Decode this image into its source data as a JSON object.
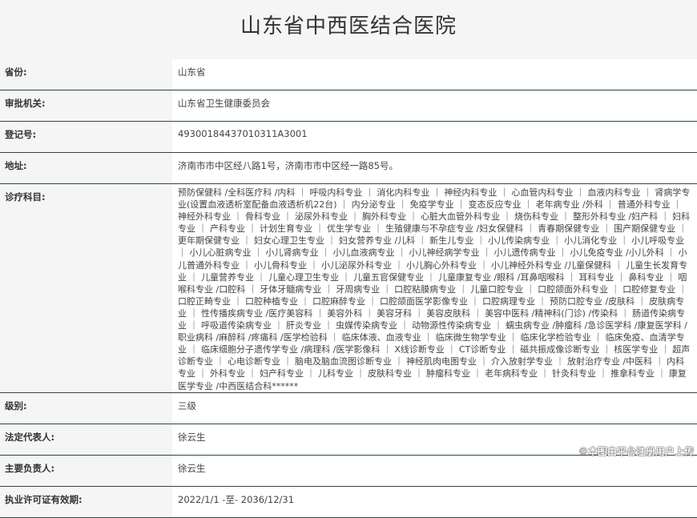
{
  "title": "山东省中西医结合医院",
  "rows": [
    {
      "label": "省份:",
      "value": "山东省"
    },
    {
      "label": "审批机关:",
      "value": "山东省卫生健康委员会"
    },
    {
      "label": "登记号:",
      "value": "49300184437010311A3001"
    },
    {
      "label": "地址:",
      "value": "济南市市中区经八路1号，济南市市中区经一路85号。"
    },
    {
      "label": "诊疗科目:",
      "value": "预防保健科 /全科医疗科 /内科 ｜ 呼吸内科专业 ｜ 消化内科专业 ｜ 神经内科专业 ｜ 心血管内科专业 ｜ 血液内科专业 ｜ 肾病学专业(设置血液透析室配备血液透析机22台) ｜ 内分泌专业 ｜ 免疫学专业 ｜ 变态反应专业 ｜ 老年病专业 /外科 ｜ 普通外科专业 ｜ 神经外科专业 ｜ 骨科专业 ｜ 泌尿外科专业 ｜ 胸外科专业 ｜ 心脏大血管外科专业 ｜ 烧伤科专业 ｜ 整形外科专业 /妇产科 ｜ 妇科专业 ｜ 产科专业 ｜ 计划生育专业 ｜ 优生学专业 ｜ 生殖健康与不孕症专业 /妇女保健科 ｜ 青春期保健专业 ｜ 围产期保健专业 ｜ 更年期保健专业 ｜ 妇女心理卫生专业 ｜ 妇女营养专业 /儿科 ｜ 新生儿专业 ｜ 小儿传染病专业 ｜ 小儿消化专业 ｜ 小儿呼吸专业 ｜ 小儿心脏病专业 ｜ 小儿肾病专业 ｜ 小儿血液病专业 ｜ 小儿神经病学专业 ｜ 小儿遗传病专业 ｜ 小儿免疫专业 /小儿外科 ｜ 小儿普通外科专业 ｜ 小儿骨科专业 ｜ 小儿泌尿外科专业 ｜ 小儿胸心外科专业 ｜ 小儿神经外科专业 /儿童保健科 ｜ 儿童生长发育专业 ｜ 儿童营养专业 ｜ 儿童心理卫生专业 ｜ 儿童五官保健专业 ｜ 儿童康复专业 /眼科 /耳鼻咽喉科 ｜ 耳科专业 ｜ 鼻科专业 ｜ 咽喉科专业 /口腔科 ｜ 牙体牙髓病专业 ｜ 牙周病专业 ｜ 口腔粘膜病专业 ｜ 儿童口腔专业 ｜ 口腔颌面外科专业 ｜ 口腔修复专业 ｜ 口腔正畸专业 ｜ 口腔种植专业 ｜ 口腔麻醉专业 ｜ 口腔颌面医学影像专业 ｜ 口腔病理专业 ｜ 预防口腔专业 /皮肤科 ｜ 皮肤病专业 ｜ 性传播疾病专业 /医疗美容科 ｜ 美容外科 ｜ 美容牙科 ｜ 美容皮肤科 ｜ 美容中医科 /精神科(门诊) /传染科 ｜ 肠道传染病专业 ｜ 呼吸道传染病专业 ｜ 肝炎专业 ｜ 虫媒传染病专业 ｜ 动物源性传染病专业 ｜ 蠕虫病专业 /肿瘤科 /急诊医学科 /康复医学科 /职业病科 /麻醉科 /疼痛科 /医学检验科 ｜ 临床体液、血液专业 ｜ 临床微生物学专业 ｜ 临床化学检验专业 ｜ 临床免疫、血清学专业 ｜ 临床细胞分子遗传学专业 /病理科 /医学影像科 ｜ X线诊断专业 ｜ CT诊断专业 ｜ 磁共振成像诊断专业 ｜ 核医学专业 ｜ 超声诊断专业 ｜ 心电诊断专业 ｜ 脑电及脑血流图诊断专业 ｜ 神经肌肉电图专业 ｜ 介入放射学专业 ｜ 放射治疗专业 /中医科 ｜ 内科专业 ｜ 外科专业 ｜ 妇产科专业 ｜ 儿科专业 ｜ 皮肤科专业 ｜ 肿瘤科专业 ｜ 老年病科专业 ｜ 针灸科专业 ｜ 推拿科专业 ｜ 康复医学专业 /中西医结合科******"
    },
    {
      "label": "级别:",
      "value": "三级"
    },
    {
      "label": "法定代表人:",
      "value": "徐云生"
    },
    {
      "label": "主要负责人:",
      "value": "徐云生"
    },
    {
      "label": "执业许可证有效期:",
      "value": "2022/1/1 -至- 2036/12/31"
    }
  ],
  "watermark": "©本图由平台注册用户上传"
}
